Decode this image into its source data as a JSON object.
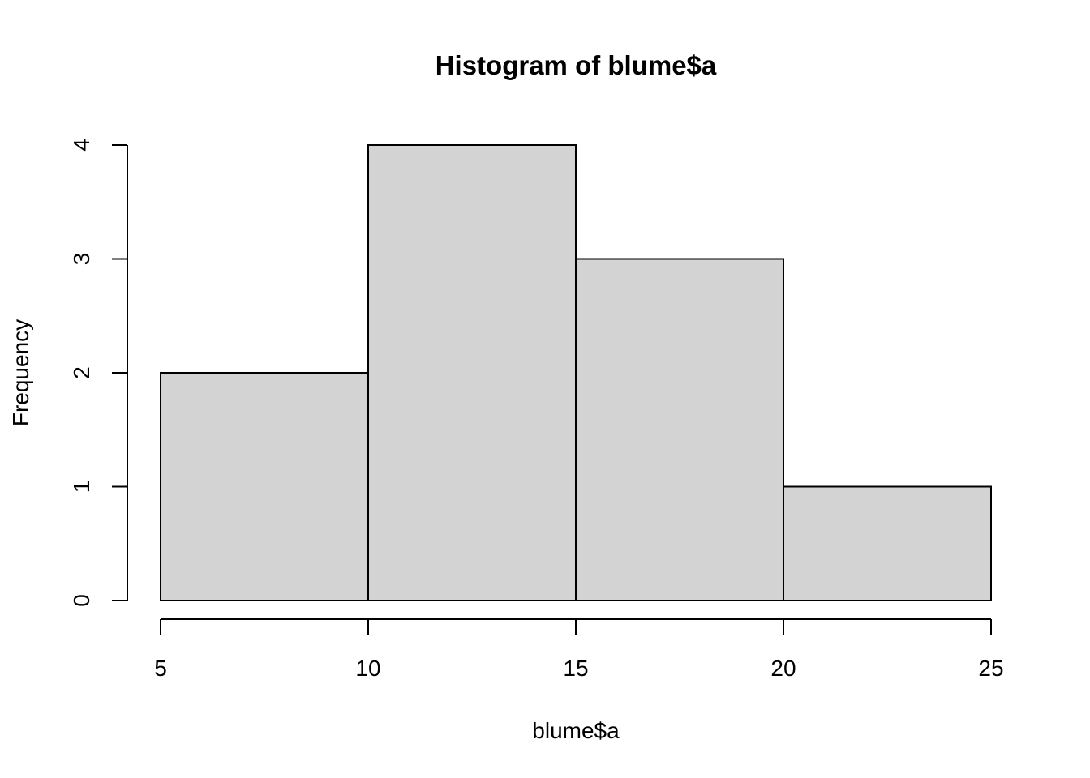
{
  "chart_data": {
    "type": "bar",
    "histogram": true,
    "title": "Histogram of blume$a",
    "xlabel": "blume$a",
    "ylabel": "Frequency",
    "bins": [
      {
        "start": 5,
        "end": 10,
        "count": 2
      },
      {
        "start": 10,
        "end": 15,
        "count": 4
      },
      {
        "start": 15,
        "end": 20,
        "count": 3
      },
      {
        "start": 20,
        "end": 25,
        "count": 1
      }
    ],
    "categories": [
      "5-10",
      "10-15",
      "15-20",
      "20-25"
    ],
    "values": [
      2,
      4,
      3,
      1
    ],
    "xlim": [
      5,
      25
    ],
    "ylim": [
      0,
      4
    ],
    "x_ticks": [
      5,
      10,
      15,
      20,
      25
    ],
    "y_ticks": [
      0,
      1,
      2,
      3,
      4
    ],
    "grid": false,
    "legend": "none",
    "bar_fill_color": "#d3d3d3",
    "bar_stroke_color": "#000000"
  }
}
